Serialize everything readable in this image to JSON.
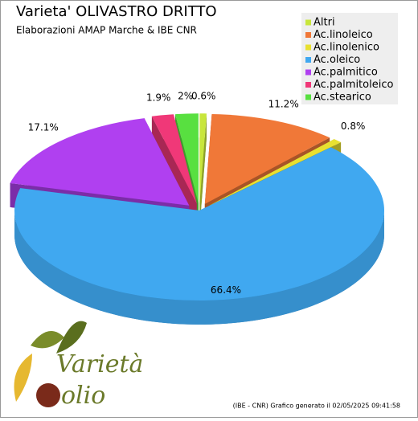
{
  "chart_data": {
    "type": "pie3d",
    "title": "Varieta' OLIVASTRO DRITTO",
    "subtitle": "Elaborazioni AMAP Marche & IBE CNR",
    "categories": [
      "Altri",
      "Ac.linoleico",
      "Ac.linolenico",
      "Ac.oleico",
      "Ac.palmitico",
      "Ac.palmitoleico",
      "Ac.stearico"
    ],
    "values": [
      0.6,
      11.2,
      0.8,
      66.4,
      17.1,
      1.9,
      2
    ],
    "value_labels": [
      "0.6%",
      "11.2%",
      "0.8%",
      "66.4%",
      "17.1%",
      "1.9%",
      "2%"
    ],
    "colors": [
      "#c8e63c",
      "#f07838",
      "#e8e030",
      "#40a8f0",
      "#b040f0",
      "#f03878",
      "#58e040"
    ],
    "legend": "top-right"
  },
  "footer": "(IBE - CNR) Grafico generato il 02/05/2025 09:41:58",
  "logo": {
    "word": "Varietà",
    "brand": "olio"
  }
}
